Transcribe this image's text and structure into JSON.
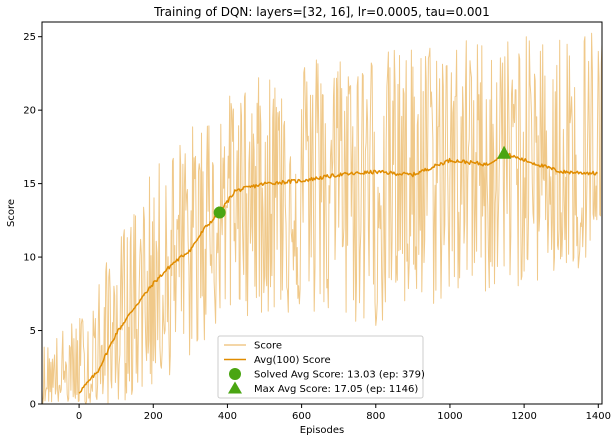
{
  "chart_data": {
    "type": "line",
    "title": "Training of DQN: layers=[32, 16], lr=0.0005, tau=0.001",
    "xlabel": "Episodes",
    "ylabel": "Score",
    "xlim": [
      -100,
      1410
    ],
    "ylim": [
      0,
      26
    ],
    "xticks": [
      0,
      200,
      400,
      600,
      800,
      1000,
      1200,
      1400
    ],
    "yticks": [
      0,
      5,
      10,
      15,
      20,
      25
    ],
    "grid": false,
    "legend_position": "bottom-center",
    "colors": {
      "score": "#f0c98a",
      "avg": "#e08c00",
      "marker": "#4aa512"
    },
    "series": [
      {
        "name": "Score",
        "kind": "noisy-line",
        "note": "per-episode score, noisy around the running average",
        "envelope": [
          {
            "x": -100,
            "lo": 0,
            "hi": 4
          },
          {
            "x": 0,
            "lo": 0,
            "hi": 6
          },
          {
            "x": 100,
            "lo": 0,
            "hi": 11
          },
          {
            "x": 200,
            "lo": 1,
            "hi": 16
          },
          {
            "x": 300,
            "lo": 3,
            "hi": 19
          },
          {
            "x": 400,
            "lo": 6,
            "hi": 21
          },
          {
            "x": 600,
            "lo": 6,
            "hi": 24
          },
          {
            "x": 800,
            "lo": 5,
            "hi": 24
          },
          {
            "x": 1000,
            "lo": 7,
            "hi": 25
          },
          {
            "x": 1200,
            "lo": 8,
            "hi": 25
          },
          {
            "x": 1400,
            "lo": 9,
            "hi": 26
          }
        ]
      },
      {
        "name": "Avg(100) Score",
        "kind": "line",
        "points": [
          {
            "x": 0,
            "y": 0.8
          },
          {
            "x": 50,
            "y": 2.2
          },
          {
            "x": 100,
            "y": 4.8
          },
          {
            "x": 150,
            "y": 6.6
          },
          {
            "x": 200,
            "y": 8.2
          },
          {
            "x": 250,
            "y": 9.5
          },
          {
            "x": 300,
            "y": 10.5
          },
          {
            "x": 340,
            "y": 12.0
          },
          {
            "x": 379,
            "y": 13.03
          },
          {
            "x": 420,
            "y": 14.5
          },
          {
            "x": 500,
            "y": 15.0
          },
          {
            "x": 600,
            "y": 15.2
          },
          {
            "x": 700,
            "y": 15.6
          },
          {
            "x": 800,
            "y": 15.8
          },
          {
            "x": 900,
            "y": 15.6
          },
          {
            "x": 1000,
            "y": 16.6
          },
          {
            "x": 1100,
            "y": 16.3
          },
          {
            "x": 1146,
            "y": 17.05
          },
          {
            "x": 1200,
            "y": 16.6
          },
          {
            "x": 1300,
            "y": 15.8
          },
          {
            "x": 1400,
            "y": 15.7
          }
        ]
      },
      {
        "name": "Solved Avg Score: 13.03 (ep: 379)",
        "kind": "marker",
        "marker": "circle",
        "x": 379,
        "y": 13.03
      },
      {
        "name": "Max Avg Score: 17.05 (ep: 1146)",
        "kind": "marker",
        "marker": "triangle",
        "x": 1146,
        "y": 17.05
      }
    ]
  }
}
